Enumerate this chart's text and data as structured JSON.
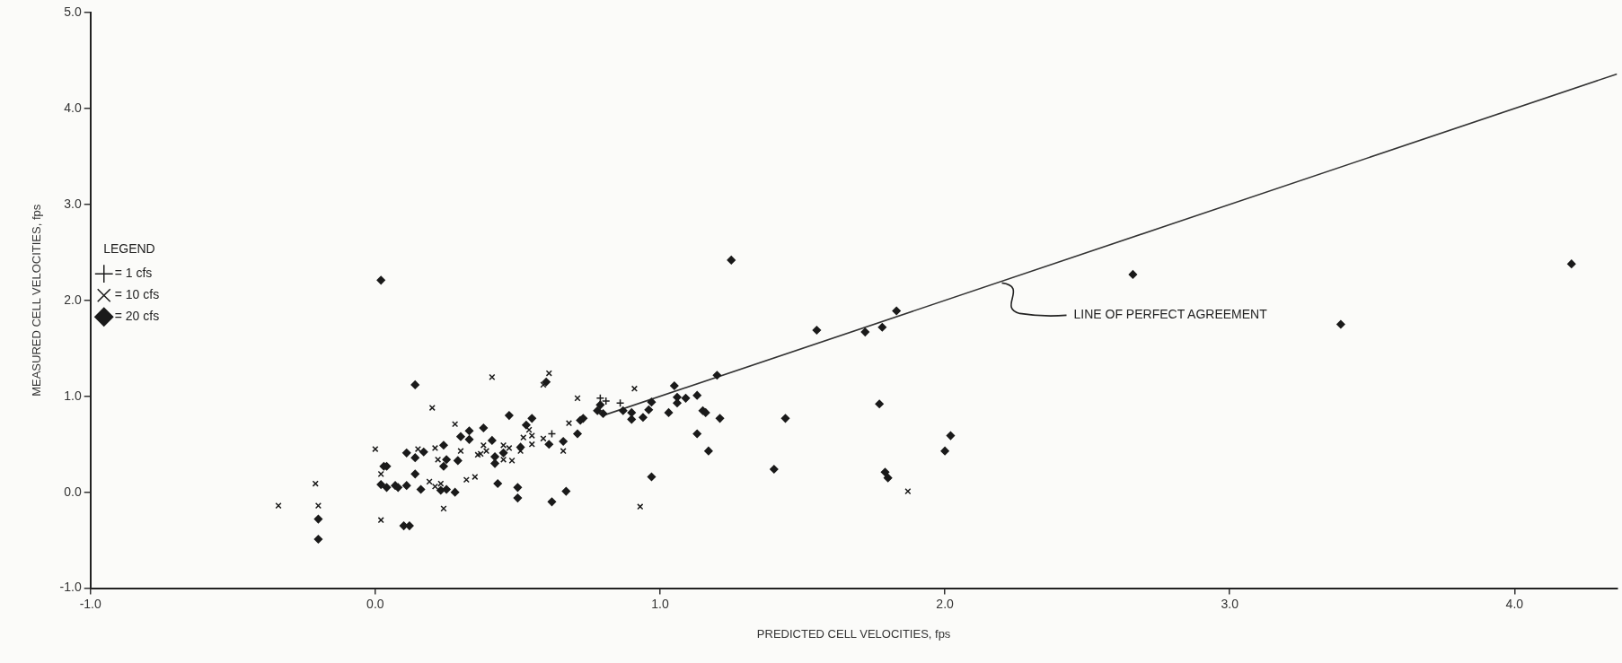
{
  "chart_data": {
    "type": "scatter",
    "xlabel": "PREDICTED CELL VELOCITIES, fps",
    "ylabel": "MEASURED CELL VELOCITIES, fps",
    "legend_title": "LEGEND",
    "legend": "top",
    "xlim": [
      -1.0,
      4.36
    ],
    "ylim": [
      -1.0,
      5.0
    ],
    "xticks": [
      {
        "value": -1,
        "label": "-1.0"
      },
      {
        "value": 0,
        "label": "0.0"
      },
      {
        "value": 1,
        "label": "1.0"
      },
      {
        "value": 2,
        "label": "2.0"
      },
      {
        "value": 3,
        "label": "3.0"
      },
      {
        "value": 4,
        "label": "4.0"
      }
    ],
    "yticks": [
      {
        "value": -1,
        "label": "-1.0"
      },
      {
        "value": 0,
        "label": "0.0"
      },
      {
        "value": 1,
        "label": "1.0"
      },
      {
        "value": 2,
        "label": "2.0"
      },
      {
        "value": 3,
        "label": "3.0"
      },
      {
        "value": 4,
        "label": "4.0"
      },
      {
        "value": 5,
        "label": "5.0"
      }
    ],
    "grid": false,
    "annotations": [
      {
        "text": "LINE OF PERFECT AGREEMENT",
        "x": 2.2,
        "y": 2.2
      }
    ],
    "series": [
      {
        "name": "= 1 cfs",
        "marker": "plus",
        "color": "#1a1a1a",
        "x": [
          0.79,
          0.81,
          0.86,
          0.62
        ],
        "values": [
          0.98,
          0.95,
          0.93,
          0.61
        ]
      },
      {
        "name": "= 10 cfs",
        "marker": "cross",
        "color": "#1a1a1a",
        "x": [
          0.41,
          0.61,
          0.59,
          0.2,
          0.91,
          0.71,
          0.54,
          0.52,
          0.55,
          0.55,
          0.51,
          0.68,
          0.59,
          0.66,
          0.45,
          0.47,
          0.38,
          0.39,
          0.36,
          0.37,
          0.45,
          0.48,
          0.3,
          0.21,
          0.22,
          0.28,
          0.15,
          0.0,
          0.02,
          0.19,
          0.21,
          0.23,
          0.32,
          0.35,
          0.93,
          0.24,
          -0.21,
          -0.34,
          -0.2,
          0.02,
          1.87
        ],
        "values": [
          1.2,
          1.24,
          1.12,
          0.88,
          1.08,
          0.98,
          0.65,
          0.57,
          0.59,
          0.5,
          0.43,
          0.72,
          0.56,
          0.43,
          0.49,
          0.46,
          0.49,
          0.43,
          0.39,
          0.4,
          0.34,
          0.33,
          0.43,
          0.46,
          0.34,
          0.71,
          0.45,
          0.45,
          0.19,
          0.11,
          0.06,
          0.09,
          0.13,
          0.16,
          -0.15,
          -0.17,
          0.09,
          -0.14,
          -0.14,
          -0.29,
          0.01
        ]
      },
      {
        "name": "= 20 cfs",
        "marker": "diamond",
        "color": "#1a1a1a",
        "x": [
          0.14,
          0.6,
          0.79,
          0.78,
          0.8,
          0.87,
          0.9,
          0.9,
          0.94,
          0.97,
          0.96,
          1.03,
          0.47,
          0.55,
          0.53,
          0.51,
          0.72,
          0.73,
          0.71,
          0.61,
          0.66,
          0.38,
          0.33,
          0.33,
          0.3,
          0.41,
          0.45,
          0.42,
          0.42,
          0.29,
          0.24,
          0.25,
          0.24,
          0.17,
          0.11,
          0.14,
          0.03,
          0.04,
          0.14,
          0.02,
          0.04,
          0.07,
          0.08,
          0.11,
          0.16,
          0.23,
          0.25,
          0.28,
          0.43,
          0.5,
          0.5,
          0.62,
          0.67,
          0.97,
          -0.2,
          0.1,
          0.12,
          -0.2,
          0.02,
          1.25,
          1.83,
          1.55,
          1.72,
          1.78,
          1.2,
          1.05,
          1.06,
          1.06,
          1.09,
          1.13,
          1.15,
          1.16,
          1.21,
          1.44,
          1.13,
          1.17,
          1.77,
          2.02,
          2.0,
          1.4,
          1.79,
          1.8,
          2.66,
          3.39,
          4.2
        ],
        "values": [
          1.12,
          1.15,
          0.91,
          0.85,
          0.82,
          0.85,
          0.83,
          0.76,
          0.78,
          0.94,
          0.86,
          0.83,
          0.8,
          0.77,
          0.7,
          0.47,
          0.75,
          0.77,
          0.61,
          0.5,
          0.53,
          0.67,
          0.64,
          0.55,
          0.58,
          0.54,
          0.41,
          0.37,
          0.3,
          0.33,
          0.49,
          0.34,
          0.27,
          0.42,
          0.41,
          0.36,
          0.27,
          0.27,
          0.19,
          0.08,
          0.05,
          0.07,
          0.05,
          0.07,
          0.03,
          0.02,
          0.03,
          0.0,
          0.09,
          0.05,
          -0.06,
          -0.1,
          0.01,
          0.16,
          -0.28,
          -0.35,
          -0.35,
          -0.49,
          2.21,
          2.42,
          1.89,
          1.69,
          1.67,
          1.72,
          1.22,
          1.11,
          0.99,
          0.93,
          0.98,
          1.01,
          0.85,
          0.83,
          0.77,
          0.77,
          0.61,
          0.43,
          0.92,
          0.59,
          0.43,
          0.24,
          0.21,
          0.15,
          2.27,
          1.75,
          2.38
        ]
      },
      {
        "type": "line",
        "marker": "none",
        "line_style": "solid",
        "color": "#333333",
        "x": [
          0.8,
          4.36
        ],
        "values": [
          0.8,
          4.36
        ]
      }
    ]
  }
}
